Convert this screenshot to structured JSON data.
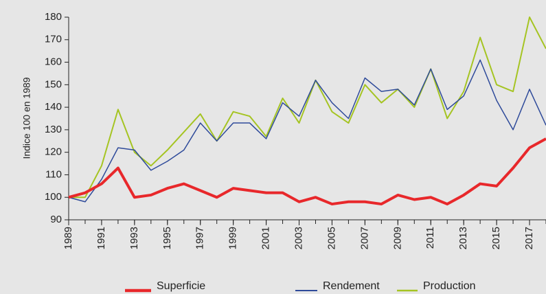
{
  "chart_data": {
    "type": "line",
    "y_label": "Indice 100 en 1989",
    "x": [
      1989,
      1990,
      1991,
      1992,
      1993,
      1994,
      1995,
      1996,
      1997,
      1998,
      1999,
      2000,
      2001,
      2002,
      2003,
      2004,
      2005,
      2006,
      2007,
      2008,
      2009,
      2010,
      2011,
      2012,
      2013,
      2014,
      2015,
      2016,
      2017,
      2018
    ],
    "xlim": [
      1989,
      2018
    ],
    "xticks": [
      1989,
      1991,
      1993,
      1995,
      1997,
      1999,
      2001,
      2003,
      2005,
      2007,
      2009,
      2011,
      2013,
      2015,
      2017
    ],
    "ylim": [
      90,
      180
    ],
    "yticks": [
      90,
      100,
      110,
      120,
      130,
      140,
      150,
      160,
      170,
      180
    ],
    "legend": "bottom",
    "series": [
      {
        "name": "Superficie",
        "color": "#e8282b",
        "width": 4,
        "values": [
          100,
          102,
          106,
          113,
          100,
          101,
          104,
          106,
          103,
          100,
          104,
          103,
          102,
          102,
          98,
          100,
          97,
          98,
          98,
          97,
          101,
          99,
          100,
          97,
          101,
          106,
          105,
          113,
          122,
          126
        ]
      },
      {
        "name": "Rendement",
        "color": "#2e4a9a",
        "width": 1.5,
        "values": [
          100,
          98,
          108,
          122,
          121,
          112,
          116,
          121,
          133,
          125,
          133,
          133,
          126,
          142,
          136,
          152,
          142,
          135,
          153,
          147,
          148,
          141,
          157,
          139,
          145,
          161,
          143,
          130,
          148,
          132
        ]
      },
      {
        "name": "Production",
        "color": "#a5c422",
        "width": 2,
        "values": [
          100,
          100,
          114,
          139,
          120,
          114,
          121,
          129,
          137,
          125,
          138,
          136,
          127,
          144,
          133,
          152,
          138,
          133,
          150,
          142,
          148,
          140,
          157,
          135,
          147,
          171,
          150,
          147,
          180,
          166
        ]
      }
    ]
  }
}
